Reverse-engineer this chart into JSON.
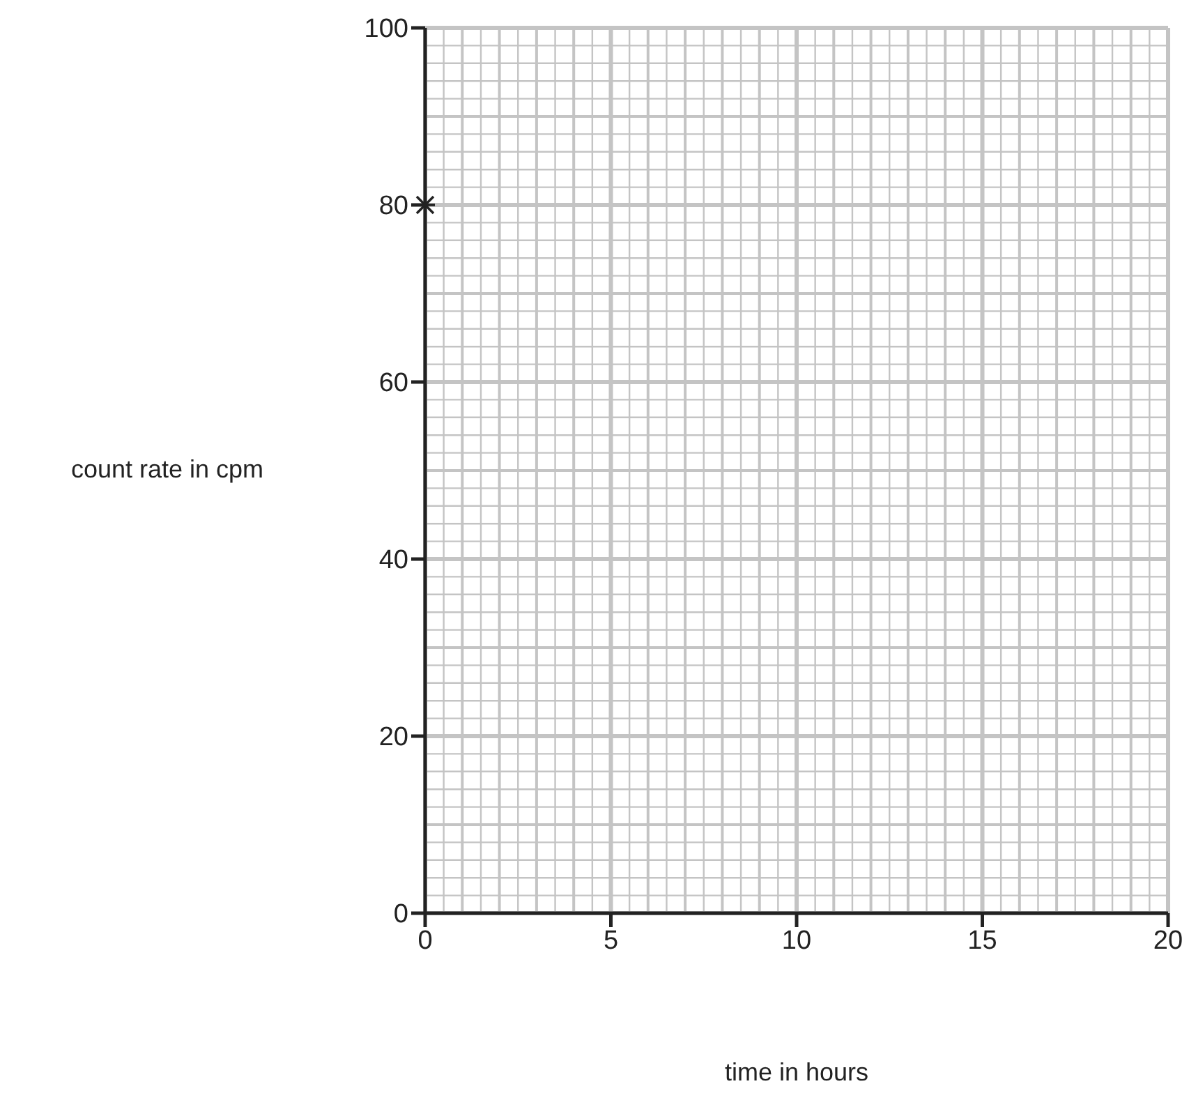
{
  "chart_data": {
    "type": "scatter",
    "xlabel": "time in hours",
    "ylabel": "count rate in cpm",
    "x": [
      0
    ],
    "values": [
      80
    ],
    "color": "#222222",
    "marker": "cross",
    "xlim": [
      0,
      20
    ],
    "xticks": [
      0,
      5,
      10,
      15,
      20
    ],
    "ylim": [
      0,
      100
    ],
    "yticks": [
      0,
      20,
      40,
      60,
      80,
      100
    ],
    "grid": true
  }
}
